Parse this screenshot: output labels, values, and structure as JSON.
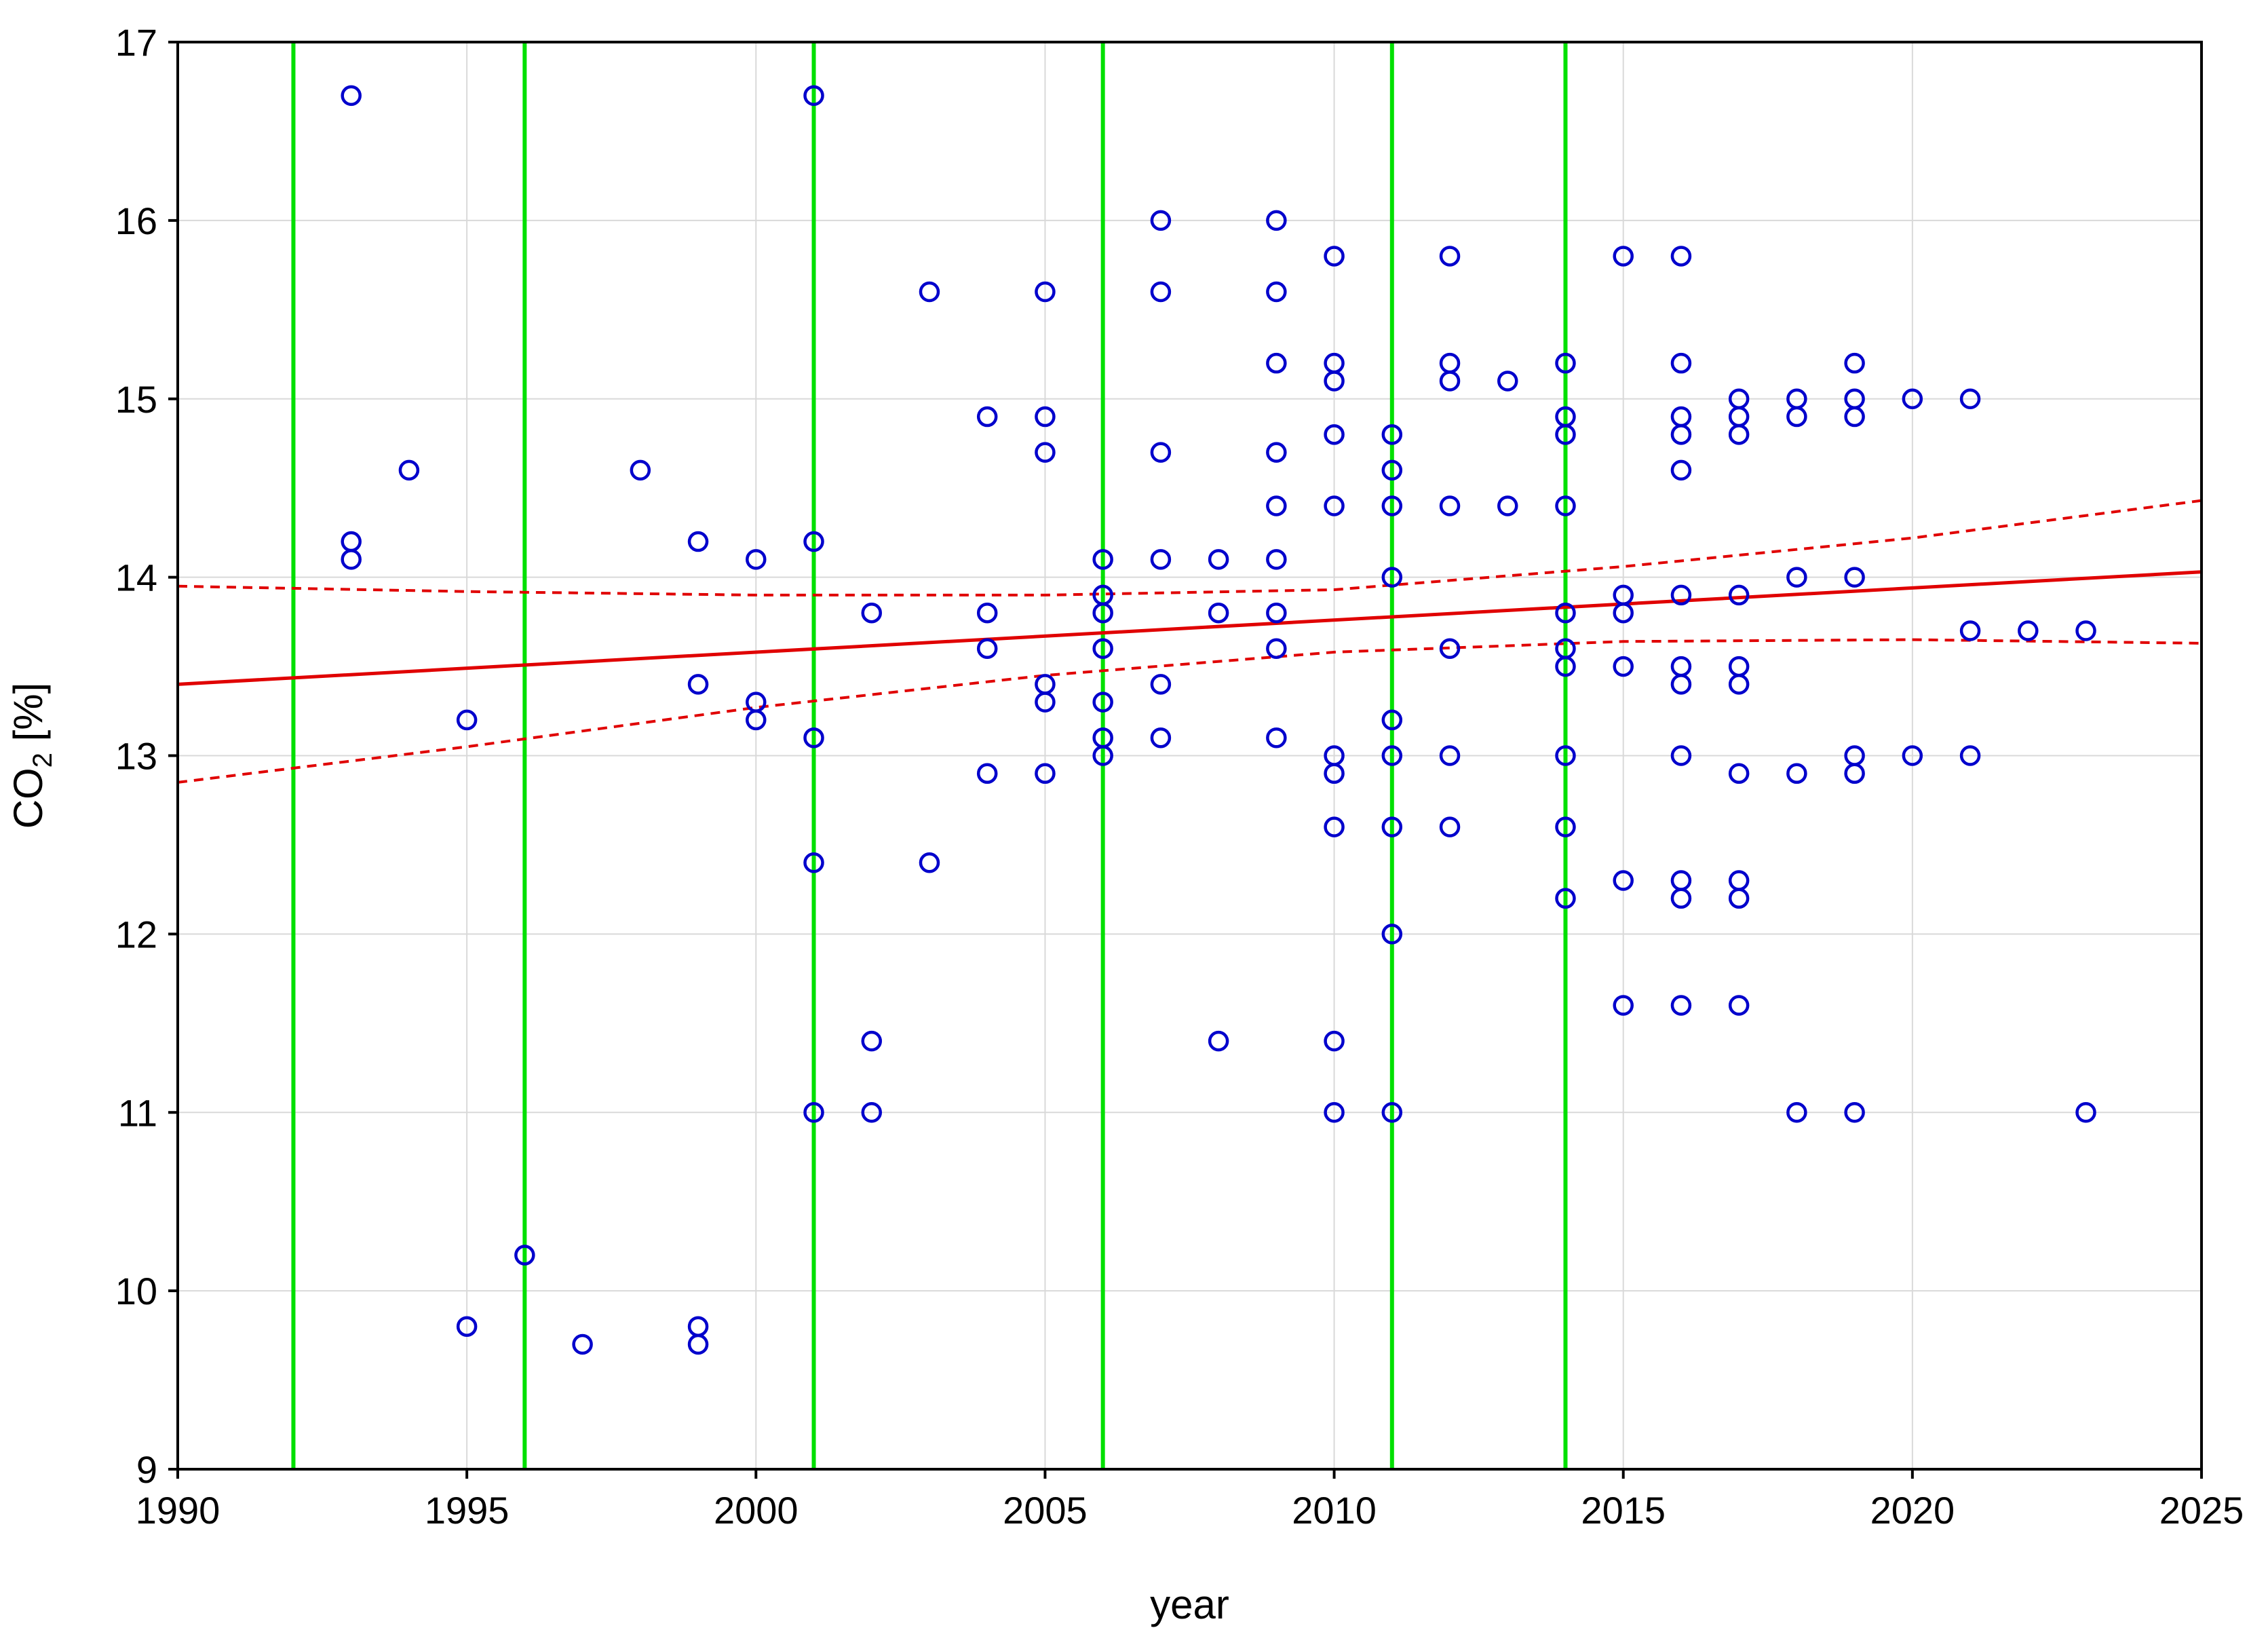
{
  "chart_data": {
    "type": "scatter",
    "title": "",
    "xlabel": "year",
    "ylabel": {
      "base": "CO",
      "sub": "2",
      "unit": " [%]"
    },
    "xlim": [
      1990,
      2025
    ],
    "ylim": [
      9,
      17
    ],
    "xticks": [
      1990,
      1995,
      2000,
      2005,
      2010,
      2015,
      2020,
      2025
    ],
    "yticks": [
      9,
      10,
      11,
      12,
      13,
      14,
      15,
      16,
      17
    ],
    "grid": true,
    "colors": {
      "points": "#0000cc",
      "fit": "#e00000",
      "confidence": "#e00000",
      "markers": "#00e000",
      "grid": "#d9d9d9",
      "axis": "#000000"
    },
    "vertical_lines": [
      1992,
      1996,
      2001,
      2006,
      2011,
      2014
    ],
    "fit_line": {
      "x": [
        1990,
        2025
      ],
      "y": [
        13.4,
        14.03
      ]
    },
    "confidence_upper": {
      "x": [
        1990,
        1995,
        2000,
        2005,
        2010,
        2015,
        2020,
        2025
      ],
      "y": [
        13.95,
        13.92,
        13.9,
        13.9,
        13.93,
        14.06,
        14.22,
        14.43
      ]
    },
    "confidence_lower": {
      "x": [
        1990,
        1995,
        2000,
        2005,
        2010,
        2015,
        2020,
        2025
      ],
      "y": [
        12.85,
        13.05,
        13.27,
        13.45,
        13.58,
        13.64,
        13.65,
        13.63
      ]
    },
    "series": [
      {
        "marker": "circle",
        "points": [
          [
            1993,
            16.7
          ],
          [
            1993,
            14.2
          ],
          [
            1993,
            14.1
          ],
          [
            1994,
            14.6
          ],
          [
            1995,
            13.2
          ],
          [
            1995,
            9.8
          ],
          [
            1996,
            10.2
          ],
          [
            1997,
            9.7
          ],
          [
            1998,
            14.6
          ],
          [
            1999,
            14.2
          ],
          [
            1999,
            13.4
          ],
          [
            1999,
            9.8
          ],
          [
            1999,
            9.7
          ],
          [
            2000,
            14.1
          ],
          [
            2000,
            13.3
          ],
          [
            2000,
            13.2
          ],
          [
            2001,
            16.7
          ],
          [
            2001,
            14.2
          ],
          [
            2001,
            13.1
          ],
          [
            2001,
            12.4
          ],
          [
            2001,
            11.0
          ],
          [
            2002,
            13.8
          ],
          [
            2002,
            11.4
          ],
          [
            2002,
            11.0
          ],
          [
            2003,
            15.6
          ],
          [
            2003,
            12.4
          ],
          [
            2004,
            14.9
          ],
          [
            2004,
            13.8
          ],
          [
            2004,
            13.6
          ],
          [
            2004,
            12.9
          ],
          [
            2005,
            15.6
          ],
          [
            2005,
            14.9
          ],
          [
            2005,
            14.7
          ],
          [
            2005,
            13.4
          ],
          [
            2005,
            13.3
          ],
          [
            2005,
            12.9
          ],
          [
            2006,
            14.1
          ],
          [
            2006,
            13.9
          ],
          [
            2006,
            13.8
          ],
          [
            2006,
            13.6
          ],
          [
            2006,
            13.3
          ],
          [
            2006,
            13.1
          ],
          [
            2006,
            13.0
          ],
          [
            2007,
            16.0
          ],
          [
            2007,
            15.6
          ],
          [
            2007,
            14.7
          ],
          [
            2007,
            14.1
          ],
          [
            2007,
            13.4
          ],
          [
            2007,
            13.1
          ],
          [
            2008,
            14.1
          ],
          [
            2008,
            13.8
          ],
          [
            2008,
            11.4
          ],
          [
            2009,
            16.0
          ],
          [
            2009,
            15.6
          ],
          [
            2009,
            15.2
          ],
          [
            2009,
            14.7
          ],
          [
            2009,
            14.4
          ],
          [
            2009,
            14.1
          ],
          [
            2009,
            13.8
          ],
          [
            2009,
            13.6
          ],
          [
            2009,
            13.1
          ],
          [
            2010,
            15.8
          ],
          [
            2010,
            15.2
          ],
          [
            2010,
            15.1
          ],
          [
            2010,
            14.8
          ],
          [
            2010,
            14.4
          ],
          [
            2010,
            13.0
          ],
          [
            2010,
            12.9
          ],
          [
            2010,
            12.6
          ],
          [
            2010,
            11.4
          ],
          [
            2010,
            11.0
          ],
          [
            2011,
            14.8
          ],
          [
            2011,
            14.6
          ],
          [
            2011,
            14.4
          ],
          [
            2011,
            14.0
          ],
          [
            2011,
            13.2
          ],
          [
            2011,
            13.0
          ],
          [
            2011,
            12.6
          ],
          [
            2011,
            12.0
          ],
          [
            2011,
            11.0
          ],
          [
            2012,
            15.8
          ],
          [
            2012,
            15.2
          ],
          [
            2012,
            15.1
          ],
          [
            2012,
            14.4
          ],
          [
            2012,
            13.6
          ],
          [
            2012,
            13.0
          ],
          [
            2012,
            12.6
          ],
          [
            2013,
            15.1
          ],
          [
            2013,
            14.4
          ],
          [
            2014,
            15.2
          ],
          [
            2014,
            14.9
          ],
          [
            2014,
            14.8
          ],
          [
            2014,
            14.4
          ],
          [
            2014,
            13.8
          ],
          [
            2014,
            13.6
          ],
          [
            2014,
            13.5
          ],
          [
            2014,
            13.0
          ],
          [
            2014,
            12.6
          ],
          [
            2014,
            12.2
          ],
          [
            2015,
            15.8
          ],
          [
            2015,
            13.9
          ],
          [
            2015,
            13.8
          ],
          [
            2015,
            13.5
          ],
          [
            2015,
            12.3
          ],
          [
            2015,
            11.6
          ],
          [
            2016,
            15.8
          ],
          [
            2016,
            15.2
          ],
          [
            2016,
            14.9
          ],
          [
            2016,
            14.8
          ],
          [
            2016,
            14.6
          ],
          [
            2016,
            13.9
          ],
          [
            2016,
            13.5
          ],
          [
            2016,
            13.4
          ],
          [
            2016,
            13.0
          ],
          [
            2016,
            12.3
          ],
          [
            2016,
            12.2
          ],
          [
            2016,
            11.6
          ],
          [
            2017,
            15.0
          ],
          [
            2017,
            14.9
          ],
          [
            2017,
            14.8
          ],
          [
            2017,
            13.9
          ],
          [
            2017,
            13.5
          ],
          [
            2017,
            13.4
          ],
          [
            2017,
            12.9
          ],
          [
            2017,
            12.3
          ],
          [
            2017,
            12.2
          ],
          [
            2017,
            11.6
          ],
          [
            2018,
            15.0
          ],
          [
            2018,
            14.9
          ],
          [
            2018,
            14.0
          ],
          [
            2018,
            12.9
          ],
          [
            2018,
            11.0
          ],
          [
            2019,
            15.2
          ],
          [
            2019,
            15.0
          ],
          [
            2019,
            14.9
          ],
          [
            2019,
            14.0
          ],
          [
            2019,
            13.0
          ],
          [
            2019,
            12.9
          ],
          [
            2019,
            11.0
          ],
          [
            2020,
            15.0
          ],
          [
            2020,
            13.0
          ],
          [
            2021,
            15.0
          ],
          [
            2021,
            13.7
          ],
          [
            2021,
            13.0
          ],
          [
            2022,
            13.7
          ],
          [
            2023,
            13.7
          ],
          [
            2023,
            11.0
          ]
        ]
      }
    ]
  }
}
